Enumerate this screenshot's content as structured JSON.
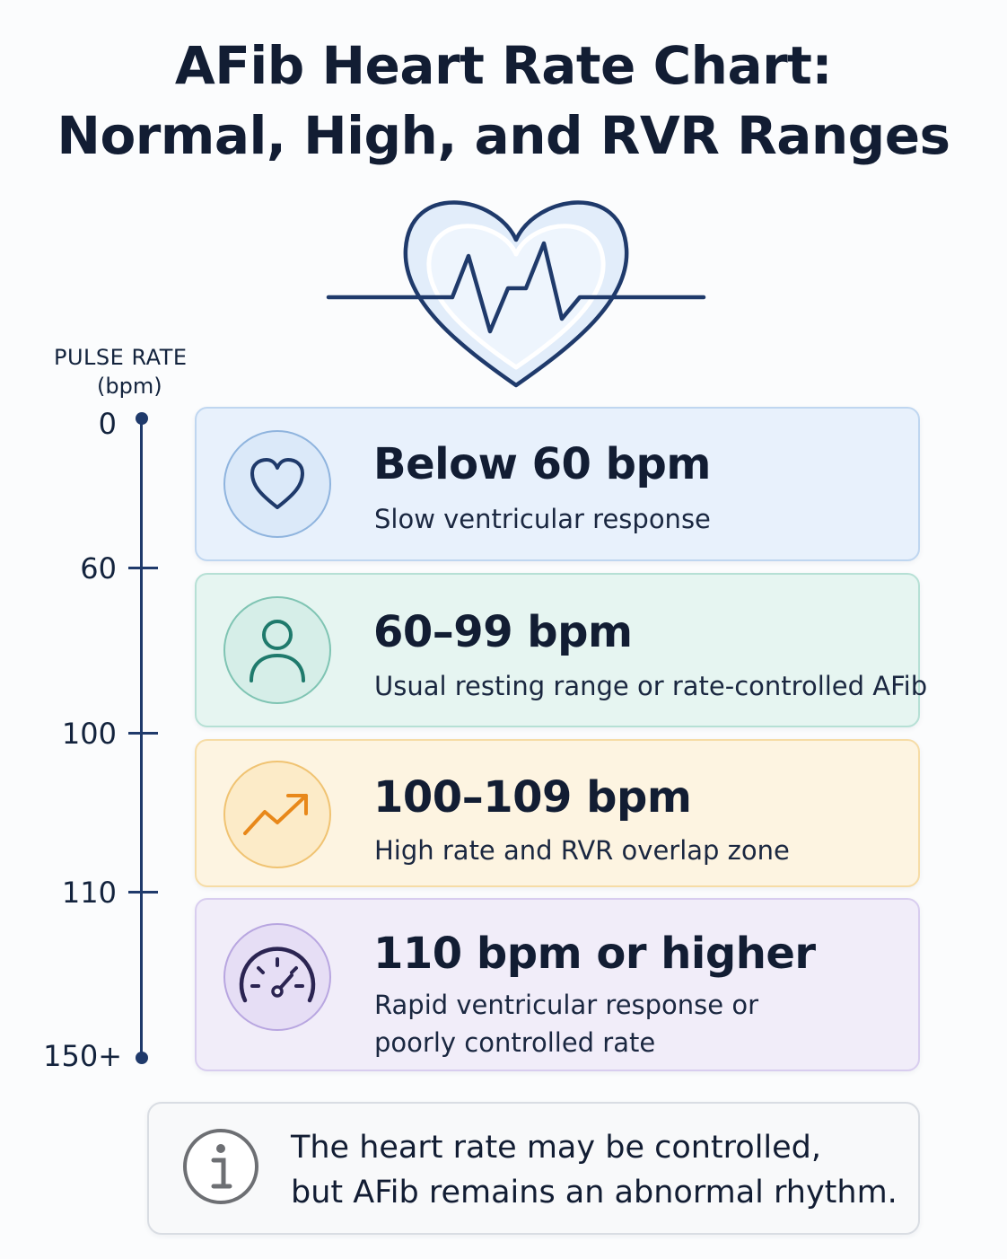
{
  "title": {
    "line1": "AFib Heart Rate Chart:",
    "line2": "Normal, High, and RVR Ranges"
  },
  "axis": {
    "title": "PULSE RATE",
    "unit": "(bpm)",
    "ticks": [
      "0",
      "60",
      "100",
      "110",
      "150+"
    ]
  },
  "ranges": [
    {
      "icon": "heart-icon",
      "color": "#e8f1fc",
      "heading": "Below 60 bpm",
      "description": [
        "Slow ventricular response"
      ]
    },
    {
      "icon": "person-icon",
      "color": "#e6f5f1",
      "heading": "60–99 bpm",
      "description": [
        "Usual resting range or rate-controlled AFib"
      ]
    },
    {
      "icon": "trending-up-icon",
      "color": "#fdf4e1",
      "heading": "100–109 bpm",
      "description": [
        "High rate and RVR overlap zone"
      ]
    },
    {
      "icon": "gauge-icon",
      "color": "#f1edf9",
      "heading": "110 bpm or higher",
      "description": [
        "Rapid ventricular response or",
        "poorly controlled rate"
      ]
    }
  ],
  "note": {
    "icon": "info-icon",
    "lines": [
      "The heart rate may be controlled,",
      "but AFib remains an abnormal rhythm."
    ]
  }
}
